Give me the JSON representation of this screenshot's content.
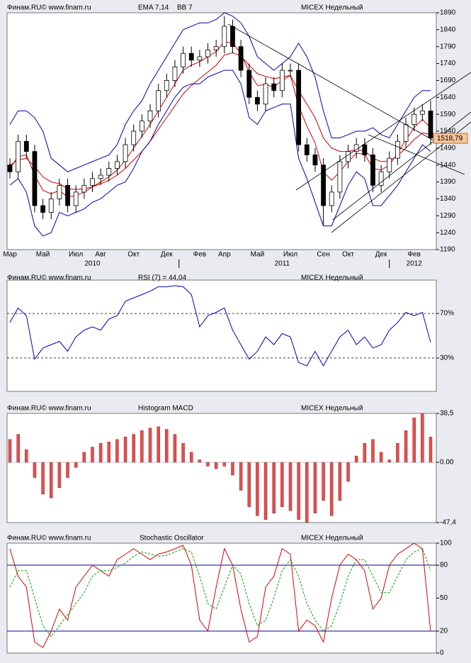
{
  "chart_data": [
    {
      "type": "candlestick",
      "source": "Финам.RU©  www.finam.ru",
      "title": "MICEX Недельный",
      "categories": [
        "Мар",
        null,
        null,
        null,
        "Май",
        null,
        null,
        null,
        "Июл",
        null,
        null,
        "Авг",
        null,
        null,
        null,
        "Окт",
        null,
        null,
        null,
        "Дек",
        null,
        null,
        null,
        "Фев",
        null,
        null,
        "Апр",
        null,
        null,
        null,
        "Май",
        null,
        null,
        null,
        "Июл",
        null,
        null,
        null,
        "Сен",
        null,
        null,
        "Окт",
        null,
        null,
        null,
        "Дек",
        null,
        null,
        null,
        "Фев",
        null,
        null
      ],
      "years": [
        null,
        null,
        null,
        null,
        null,
        null,
        null,
        null,
        null,
        null,
        "2010",
        null,
        null,
        null,
        null,
        null,
        null,
        null,
        null,
        null,
        null,
        null,
        null,
        null,
        null,
        null,
        null,
        null,
        null,
        null,
        null,
        null,
        null,
        "2011",
        null,
        null,
        null,
        null,
        null,
        null,
        null,
        null,
        null,
        null,
        null,
        null,
        null,
        null,
        null,
        "2012",
        null,
        null
      ],
      "open": [
        1440,
        1420,
        1510,
        1480,
        1320,
        1300,
        1340,
        1380,
        1320,
        1360,
        1380,
        1400,
        1410,
        1430,
        1450,
        1500,
        1540,
        1570,
        1600,
        1660,
        1690,
        1730,
        1770,
        1750,
        1760,
        1780,
        1790,
        1850,
        1790,
        1720,
        1640,
        1620,
        1680,
        1660,
        1720,
        1720,
        1500,
        1470,
        1440,
        1320,
        1360,
        1450,
        1480,
        1500,
        1470,
        1380,
        1420,
        1460,
        1510,
        1560,
        1590,
        1600
      ],
      "high": [
        1460,
        1530,
        1530,
        1500,
        1340,
        1360,
        1400,
        1400,
        1380,
        1400,
        1420,
        1430,
        1450,
        1470,
        1520,
        1560,
        1590,
        1620,
        1680,
        1710,
        1750,
        1790,
        1790,
        1780,
        1800,
        1810,
        1880,
        1870,
        1810,
        1740,
        1660,
        1700,
        1700,
        1740,
        1740,
        1740,
        1520,
        1490,
        1460,
        1380,
        1470,
        1500,
        1520,
        1520,
        1490,
        1440,
        1480,
        1530,
        1580,
        1610,
        1620,
        1630
      ],
      "low": [
        1400,
        1400,
        1460,
        1300,
        1280,
        1280,
        1320,
        1300,
        1300,
        1340,
        1360,
        1380,
        1390,
        1410,
        1430,
        1480,
        1520,
        1550,
        1580,
        1640,
        1670,
        1710,
        1730,
        1730,
        1740,
        1760,
        1770,
        1770,
        1700,
        1620,
        1600,
        1600,
        1640,
        1640,
        1700,
        1480,
        1450,
        1420,
        1260,
        1300,
        1340,
        1430,
        1460,
        1450,
        1360,
        1360,
        1400,
        1440,
        1490,
        1540,
        1570,
        1500
      ],
      "close": [
        1420,
        1510,
        1480,
        1320,
        1300,
        1340,
        1380,
        1320,
        1360,
        1380,
        1400,
        1410,
        1430,
        1450,
        1500,
        1540,
        1570,
        1600,
        1660,
        1690,
        1730,
        1770,
        1750,
        1760,
        1780,
        1790,
        1850,
        1790,
        1720,
        1640,
        1620,
        1680,
        1660,
        1720,
        1720,
        1500,
        1470,
        1440,
        1320,
        1360,
        1450,
        1480,
        1500,
        1470,
        1380,
        1420,
        1460,
        1510,
        1560,
        1590,
        1600,
        1520
      ],
      "up_color": "#ffffff",
      "down_color": "#000000",
      "overlays": [
        {
          "name": "EMA 7,14",
          "color": "#d00000",
          "lines": [
            [
              1430,
              1465,
              1470,
              1410,
              1365,
              1355,
              1365,
              1345,
              1350,
              1360,
              1375,
              1390,
              1405,
              1425,
              1455,
              1490,
              1525,
              1560,
              1600,
              1640,
              1680,
              1720,
              1735,
              1745,
              1760,
              1775,
              1805,
              1800,
              1770,
              1715,
              1675,
              1678,
              1670,
              1690,
              1705,
              1615,
              1555,
              1505,
              1420,
              1395,
              1420,
              1450,
              1475,
              1472,
              1430,
              1425,
              1440,
              1475,
              1515,
              1550,
              1575,
              1550
            ],
            [
              1440,
              1455,
              1460,
              1435,
              1405,
              1390,
              1385,
              1370,
              1368,
              1370,
              1375,
              1385,
              1395,
              1410,
              1430,
              1455,
              1480,
              1510,
              1545,
              1580,
              1615,
              1650,
              1675,
              1695,
              1715,
              1735,
              1765,
              1772,
              1762,
              1735,
              1710,
              1702,
              1695,
              1700,
              1705,
              1660,
              1620,
              1580,
              1520,
              1490,
              1480,
              1480,
              1485,
              1482,
              1460,
              1450,
              1452,
              1468,
              1490,
              1515,
              1535,
              1530
            ]
          ]
        },
        {
          "name": "BB 7",
          "color": "#0000c0",
          "lines": [
            [
              1560,
              1600,
              1600,
              1580,
              1540,
              1460,
              1440,
              1420,
              1430,
              1440,
              1450,
              1460,
              1470,
              1500,
              1560,
              1600,
              1630,
              1680,
              1720,
              1760,
              1800,
              1840,
              1850,
              1860,
              1860,
              1870,
              1890,
              1880,
              1860,
              1820,
              1760,
              1740,
              1720,
              1740,
              1760,
              1800,
              1760,
              1700,
              1600,
              1520,
              1520,
              1530,
              1540,
              1540,
              1550,
              1530,
              1520,
              1560,
              1600,
              1640,
              1660,
              1660
            ],
            [
              1380,
              1400,
              1360,
              1260,
              1230,
              1240,
              1300,
              1290,
              1300,
              1310,
              1330,
              1340,
              1360,
              1380,
              1390,
              1430,
              1480,
              1510,
              1560,
              1600,
              1640,
              1670,
              1680,
              1680,
              1700,
              1710,
              1720,
              1720,
              1680,
              1580,
              1560,
              1600,
              1610,
              1620,
              1620,
              1460,
              1400,
              1330,
              1260,
              1260,
              1320,
              1380,
              1420,
              1400,
              1320,
              1320,
              1350,
              1380,
              1420,
              1460,
              1500,
              1480
            ]
          ]
        }
      ],
      "last_value": 1518.79,
      "last_label": "1518,79",
      "ylim": [
        1190,
        1890
      ],
      "yticks": [
        1190,
        1240,
        1290,
        1340,
        1390,
        1440,
        1490,
        1540,
        1590,
        1640,
        1690,
        1740,
        1790,
        1840,
        1890
      ]
    },
    {
      "type": "line",
      "source": "Финам.RU©  www.finam.ru",
      "title": "MICEX Недельный",
      "series": [
        {
          "name": "RSI (7) = 44,04",
          "color": "#0000c0",
          "values": [
            62,
            75,
            68,
            29,
            39,
            42,
            45,
            36,
            49,
            55,
            58,
            55,
            65,
            68,
            81,
            84,
            87,
            90,
            94,
            94,
            95,
            94,
            87,
            58,
            68,
            71,
            75,
            55,
            42,
            29,
            36,
            49,
            42,
            52,
            49,
            26,
            23,
            36,
            23,
            36,
            49,
            55,
            42,
            49,
            39,
            42,
            55,
            62,
            71,
            68,
            71,
            44.04
          ]
        }
      ],
      "ylim": [
        0,
        100
      ],
      "yticks": [
        {
          "value": 70,
          "label": "70%"
        },
        {
          "value": 30,
          "label": "30%"
        }
      ],
      "grid": true
    },
    {
      "type": "bar",
      "source": "Финам.RU©  www.finam.ru",
      "title": "MICEX Недельный",
      "series": [
        {
          "name": "Histogram MACD",
          "color": "#e05050",
          "values": [
            18,
            22,
            10,
            -12,
            -25,
            -28,
            -20,
            -12,
            -4,
            8,
            12,
            15,
            16,
            18,
            20,
            22,
            25,
            27,
            28,
            26,
            22,
            15,
            8,
            2,
            -3,
            -5,
            -3,
            -10,
            -22,
            -35,
            -42,
            -45,
            -40,
            -35,
            -38,
            -45,
            -47,
            -40,
            -30,
            -42,
            -30,
            -15,
            5,
            15,
            18,
            8,
            2,
            15,
            25,
            35,
            38,
            20
          ]
        }
      ],
      "ylim": [
        -47.4,
        38.5
      ],
      "yticks": [
        {
          "value": 38.5,
          "label": "38,5"
        },
        {
          "value": 0,
          "label": "0.00"
        },
        {
          "value": -47.4,
          "label": "-47,4"
        }
      ]
    },
    {
      "type": "stochastic",
      "source": "Финам.RU©  www.finam.ru",
      "title": "MICEX Недельный",
      "label": "Stochastic Oscillator",
      "series": [
        {
          "color": "#e00000",
          "values": [
            95,
            70,
            60,
            10,
            5,
            20,
            40,
            30,
            60,
            70,
            80,
            75,
            70,
            85,
            90,
            95,
            90,
            85,
            90,
            92,
            95,
            98,
            80,
            30,
            20,
            60,
            95,
            80,
            40,
            10,
            15,
            60,
            70,
            95,
            90,
            20,
            30,
            25,
            10,
            50,
            80,
            90,
            85,
            75,
            40,
            50,
            80,
            90,
            95,
            100,
            95,
            20
          ]
        },
        {
          "color": "#00a000",
          "dashed": true,
          "values": [
            60,
            75,
            75,
            50,
            25,
            15,
            25,
            35,
            45,
            55,
            70,
            75,
            75,
            78,
            82,
            88,
            92,
            90,
            88,
            89,
            92,
            95,
            92,
            70,
            45,
            40,
            60,
            80,
            72,
            45,
            25,
            30,
            50,
            75,
            85,
            70,
            45,
            30,
            20,
            25,
            45,
            70,
            85,
            85,
            70,
            55,
            55,
            70,
            85,
            92,
            95,
            75
          ]
        }
      ],
      "levels": [
        80,
        20
      ],
      "ylim": [
        0,
        100
      ],
      "yticks": [
        100,
        80,
        50,
        20,
        0
      ]
    }
  ]
}
